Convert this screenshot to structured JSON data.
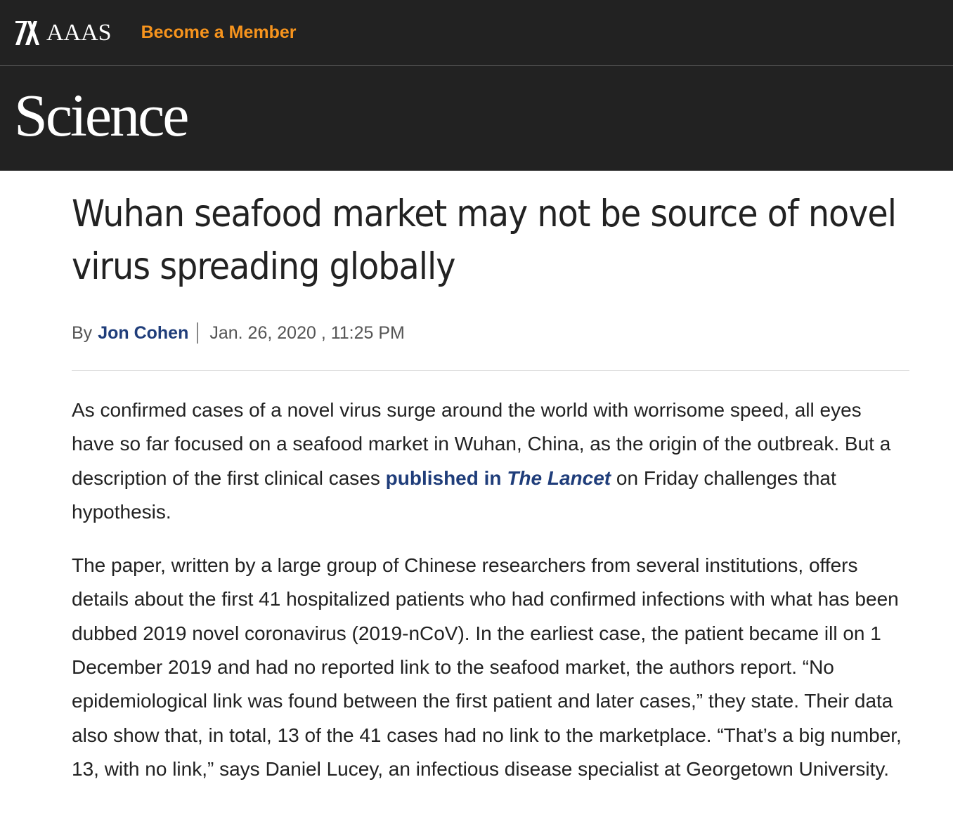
{
  "topbar": {
    "logo_text": "AAAS",
    "member_link": "Become a Member"
  },
  "masthead": {
    "title": "Science"
  },
  "article": {
    "headline": "Wuhan seafood market may not be source of novel virus spreading globally",
    "byline": {
      "by": "By",
      "author": "Jon Cohen",
      "date": "Jan. 26, 2020 , 11:25 PM"
    },
    "p1": {
      "before_link": "As confirmed cases of a novel virus surge around the world with worrisome speed, all eyes have so far focused on a seafood market in Wuhan, China, as the origin of the outbreak. But a description of the first clinical cases ",
      "link_text": "published in ",
      "link_italic": "The Lancet",
      "after_link": " on Friday challenges that hypothesis."
    },
    "p2": "The paper, written by a large group of Chinese researchers from several institutions, offers details about the first 41 hospitalized patients who had confirmed infections with what has been dubbed 2019 novel coronavirus (2019-nCoV). In the earliest case, the patient became ill on 1 December 2019 and had no reported link to the seafood market, the authors report. “No epidemiological link was found between the first patient and later cases,” they state. Their data also show that, in total, 13 of the 41 cases had no link to the marketplace. “That’s a big number, 13, with no link,” says Daniel Lucey, an infectious disease specialist at Georgetown University."
  },
  "colors": {
    "header_bg": "#222222",
    "member_orange": "#f7941d",
    "link_blue": "#1f3d7a"
  }
}
